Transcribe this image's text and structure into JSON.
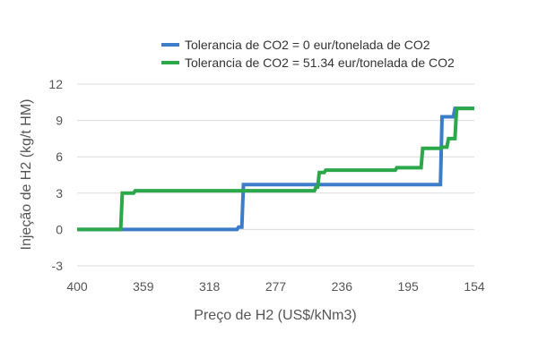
{
  "chart_data": {
    "type": "line",
    "xlabel": "Preço de H2 (US$/kNm3)",
    "ylabel": "Injeção de H2 (kg/t HM)",
    "x_reversed": true,
    "xlim": [
      400,
      154
    ],
    "ylim": [
      -3,
      12
    ],
    "x_ticks": [
      400,
      359,
      318,
      277,
      236,
      195,
      154
    ],
    "y_ticks": [
      -3,
      0,
      3,
      6,
      9,
      12
    ],
    "grid": "horizontal",
    "legend_position": "top-right",
    "series": [
      {
        "name": "Tolerancia de CO2 = 0 eur/tonelada de CO2",
        "color": "#3d7cc9",
        "points": [
          [
            400,
            0
          ],
          [
            301,
            0
          ],
          [
            300,
            0.2
          ],
          [
            298,
            0.2
          ],
          [
            297,
            3.7
          ],
          [
            175,
            3.7
          ],
          [
            174,
            9.3
          ],
          [
            167,
            9.3
          ],
          [
            166,
            10
          ],
          [
            154,
            10
          ]
        ]
      },
      {
        "name": "Tolerancia de CO2 = 51.34 eur/tonelada de CO2",
        "color": "#2aa84a",
        "points": [
          [
            400,
            0
          ],
          [
            373,
            0
          ],
          [
            372,
            3
          ],
          [
            365,
            3
          ],
          [
            364,
            3.2
          ],
          [
            253,
            3.2
          ],
          [
            252,
            3.5
          ],
          [
            251,
            3.5
          ],
          [
            250,
            4.7
          ],
          [
            247,
            4.7
          ],
          [
            246,
            4.9
          ],
          [
            203,
            4.9
          ],
          [
            202,
            5.1
          ],
          [
            187,
            5.1
          ],
          [
            186,
            6.7
          ],
          [
            175,
            6.7
          ],
          [
            174,
            6.8
          ],
          [
            171,
            6.8
          ],
          [
            170,
            7.5
          ],
          [
            166,
            7.5
          ],
          [
            165,
            10
          ],
          [
            154,
            10
          ]
        ]
      }
    ]
  }
}
